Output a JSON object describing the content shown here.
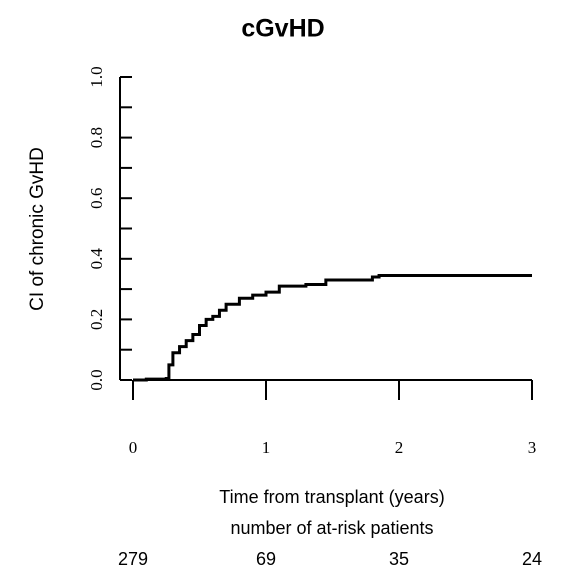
{
  "chart_data": {
    "type": "step",
    "title": "cGvHD",
    "ylabel": "CI of chronic GvHD",
    "xlabel": "Time from transplant (years)",
    "x": [
      0,
      0.1,
      0.25,
      0.27,
      0.3,
      0.35,
      0.4,
      0.45,
      0.5,
      0.55,
      0.6,
      0.65,
      0.7,
      0.8,
      0.9,
      1.0,
      1.1,
      1.3,
      1.45,
      1.55,
      1.8,
      1.85,
      3.0
    ],
    "series": [
      {
        "name": "cGvHD",
        "color": "#000000",
        "values": [
          0,
          0.003,
          0.005,
          0.05,
          0.09,
          0.11,
          0.13,
          0.15,
          0.18,
          0.2,
          0.21,
          0.23,
          0.25,
          0.27,
          0.28,
          0.29,
          0.31,
          0.315,
          0.33,
          0.33,
          0.34,
          0.345,
          0.345
        ]
      }
    ],
    "xlim": [
      0,
      3
    ],
    "xticks": [
      0,
      1,
      2,
      3
    ],
    "ylim": [
      0,
      1
    ],
    "yticks": [
      {
        "value": 0,
        "label": "0.0"
      },
      {
        "value": 0.2,
        "label": "0.2"
      },
      {
        "value": 0.4,
        "label": "0.4"
      },
      {
        "value": 0.6,
        "label": "0.6"
      },
      {
        "value": 0.8,
        "label": "0.8"
      },
      {
        "value": 1,
        "label": "1.0"
      }
    ],
    "yminor_ticks": [
      0.1,
      0.3,
      0.5,
      0.7,
      0.9
    ],
    "at_risk": {
      "title": "number of at-risk patients",
      "values": [
        279,
        69,
        35,
        24
      ]
    }
  }
}
